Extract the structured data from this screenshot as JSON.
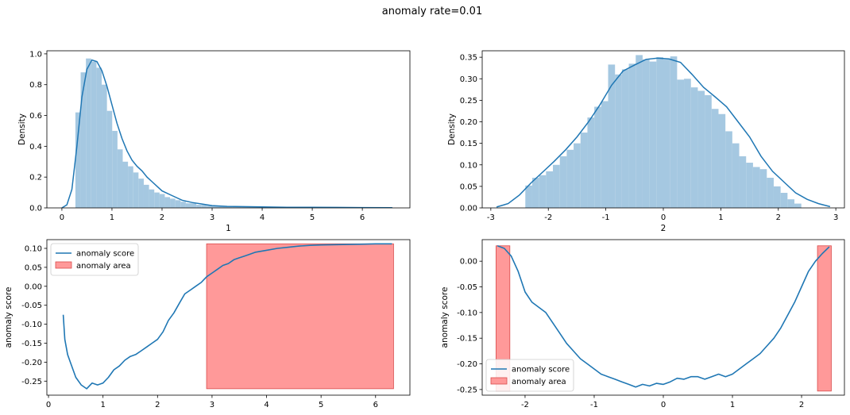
{
  "figure": {
    "suptitle": "anomaly rate=0.01"
  },
  "chart_data": [
    {
      "type": "bar",
      "subtype": "histogram+kde",
      "xlabel": "1",
      "ylabel": "Density",
      "xlim": [
        -0.3,
        6.95
      ],
      "ylim": [
        0,
        1.02
      ],
      "xticks": [
        0,
        1,
        2,
        3,
        4,
        5,
        6
      ],
      "yticks": [
        0.0,
        0.2,
        0.4,
        0.6,
        0.8,
        1.0
      ],
      "hist_color": "#a5c8e1",
      "line_color": "#1f77b4",
      "bins": {
        "edges": [
          0.27,
          0.375,
          0.48,
          0.585,
          0.69,
          0.795,
          0.9,
          1.005,
          1.11,
          1.215,
          1.32,
          1.425,
          1.53,
          1.635,
          1.74,
          1.845,
          1.95,
          2.055,
          2.16,
          2.265,
          2.37,
          2.475,
          2.58,
          2.685,
          2.79,
          2.895,
          3.0,
          3.2,
          3.4,
          3.6,
          3.8,
          4.0,
          4.5,
          5.0,
          5.5,
          6.0,
          6.6
        ],
        "heights": [
          0.62,
          0.88,
          0.97,
          0.95,
          0.91,
          0.8,
          0.63,
          0.5,
          0.38,
          0.3,
          0.27,
          0.23,
          0.19,
          0.15,
          0.12,
          0.1,
          0.09,
          0.07,
          0.06,
          0.05,
          0.04,
          0.03,
          0.03,
          0.02,
          0.02,
          0.015,
          0.012,
          0.01,
          0.008,
          0.007,
          0.006,
          0.005,
          0.004,
          0.003,
          0.002,
          0.002
        ]
      },
      "kde": {
        "x": [
          0.0,
          0.1,
          0.2,
          0.3,
          0.4,
          0.5,
          0.6,
          0.7,
          0.8,
          0.9,
          1.0,
          1.1,
          1.2,
          1.3,
          1.4,
          1.5,
          1.6,
          1.7,
          1.8,
          1.9,
          2.0,
          2.2,
          2.4,
          2.6,
          2.8,
          3.0,
          3.3,
          3.6,
          4.0,
          4.5,
          5.0,
          5.5,
          6.0,
          6.6
        ],
        "y": [
          0.0,
          0.02,
          0.12,
          0.4,
          0.72,
          0.9,
          0.96,
          0.95,
          0.89,
          0.79,
          0.67,
          0.55,
          0.45,
          0.37,
          0.31,
          0.27,
          0.24,
          0.2,
          0.17,
          0.14,
          0.11,
          0.08,
          0.05,
          0.035,
          0.025,
          0.015,
          0.01,
          0.008,
          0.006,
          0.004,
          0.004,
          0.003,
          0.002,
          0.001
        ]
      }
    },
    {
      "type": "bar",
      "subtype": "histogram+kde",
      "xlabel": "2",
      "ylabel": "Density",
      "xlim": [
        -3.15,
        3.15
      ],
      "ylim": [
        0,
        0.365
      ],
      "xticks": [
        -3,
        -2,
        -1,
        0,
        1,
        2,
        3
      ],
      "yticks": [
        0.0,
        0.05,
        0.1,
        0.15,
        0.2,
        0.25,
        0.3,
        0.35
      ],
      "hist_color": "#a5c8e1",
      "line_color": "#1f77b4",
      "bins": {
        "edges": [
          -2.4,
          -2.28,
          -2.16,
          -2.04,
          -1.92,
          -1.8,
          -1.68,
          -1.56,
          -1.44,
          -1.32,
          -1.2,
          -1.08,
          -0.96,
          -0.84,
          -0.72,
          -0.6,
          -0.48,
          -0.36,
          -0.24,
          -0.12,
          0.0,
          0.12,
          0.24,
          0.36,
          0.48,
          0.6,
          0.72,
          0.84,
          0.96,
          1.08,
          1.2,
          1.32,
          1.44,
          1.56,
          1.68,
          1.8,
          1.92,
          2.04,
          2.16,
          2.28,
          2.4
        ],
        "heights": [
          0.052,
          0.07,
          0.076,
          0.085,
          0.1,
          0.12,
          0.135,
          0.15,
          0.175,
          0.21,
          0.235,
          0.248,
          0.333,
          0.31,
          0.322,
          0.335,
          0.355,
          0.345,
          0.34,
          0.35,
          0.345,
          0.352,
          0.298,
          0.3,
          0.28,
          0.272,
          0.262,
          0.23,
          0.218,
          0.178,
          0.15,
          0.12,
          0.105,
          0.095,
          0.09,
          0.07,
          0.05,
          0.035,
          0.02,
          0.01
        ]
      },
      "kde": {
        "x": [
          -2.9,
          -2.7,
          -2.5,
          -2.3,
          -2.1,
          -1.9,
          -1.7,
          -1.5,
          -1.3,
          -1.1,
          -0.9,
          -0.7,
          -0.5,
          -0.3,
          -0.1,
          0.1,
          0.3,
          0.5,
          0.7,
          0.9,
          1.1,
          1.3,
          1.5,
          1.7,
          1.9,
          2.1,
          2.3,
          2.5,
          2.7,
          2.9
        ],
        "y": [
          0.002,
          0.01,
          0.03,
          0.058,
          0.083,
          0.108,
          0.135,
          0.165,
          0.2,
          0.24,
          0.285,
          0.318,
          0.332,
          0.345,
          0.348,
          0.346,
          0.338,
          0.31,
          0.28,
          0.258,
          0.235,
          0.2,
          0.165,
          0.12,
          0.085,
          0.06,
          0.035,
          0.02,
          0.01,
          0.003
        ]
      }
    },
    {
      "type": "line",
      "xlabel": "",
      "ylabel": "anomaly score",
      "xlim": [
        -0.03,
        6.63
      ],
      "ylim": [
        -0.287,
        0.123
      ],
      "xticks": [
        0,
        1,
        2,
        3,
        4,
        5,
        6
      ],
      "yticks": [
        -0.25,
        -0.2,
        -0.15,
        -0.1,
        -0.05,
        0.0,
        0.05,
        0.1
      ],
      "legend": {
        "placement": "upper left",
        "entries": [
          "anomaly score",
          "anomaly area"
        ]
      },
      "series": [
        {
          "name": "anomaly score",
          "color": "#1f77b4",
          "x": [
            0.27,
            0.3,
            0.35,
            0.4,
            0.5,
            0.6,
            0.7,
            0.8,
            0.9,
            1.0,
            1.1,
            1.2,
            1.3,
            1.4,
            1.5,
            1.6,
            1.7,
            1.8,
            1.9,
            2.0,
            2.1,
            2.2,
            2.3,
            2.4,
            2.5,
            2.6,
            2.7,
            2.8,
            2.9,
            3.0,
            3.1,
            3.2,
            3.3,
            3.4,
            3.5,
            3.6,
            3.7,
            3.8,
            4.0,
            4.2,
            4.4,
            4.6,
            4.8,
            5.0,
            5.4,
            5.8,
            6.0,
            6.3
          ],
          "y": [
            -0.075,
            -0.14,
            -0.18,
            -0.2,
            -0.24,
            -0.26,
            -0.27,
            -0.255,
            -0.26,
            -0.255,
            -0.24,
            -0.22,
            -0.21,
            -0.195,
            -0.185,
            -0.18,
            -0.17,
            -0.16,
            -0.15,
            -0.14,
            -0.12,
            -0.09,
            -0.07,
            -0.045,
            -0.02,
            -0.01,
            0.0,
            0.01,
            0.025,
            0.035,
            0.045,
            0.055,
            0.06,
            0.07,
            0.075,
            0.08,
            0.085,
            0.09,
            0.095,
            0.1,
            0.103,
            0.106,
            0.108,
            0.109,
            0.11,
            0.111,
            0.112,
            0.112
          ]
        }
      ],
      "anomaly_areas": [
        {
          "x_range": [
            2.9,
            6.33
          ],
          "y_range": [
            -0.27,
            0.112
          ],
          "color": "#ff9999"
        }
      ]
    },
    {
      "type": "line",
      "xlabel": "",
      "ylabel": "anomaly score",
      "xlim": [
        -2.62,
        2.62
      ],
      "ylim": [
        -0.261,
        0.042
      ],
      "xticks": [
        -2,
        -1,
        0,
        1,
        2
      ],
      "yticks": [
        -0.25,
        -0.2,
        -0.15,
        -0.1,
        -0.05,
        0.0
      ],
      "legend": {
        "placement": "lower left",
        "entries": [
          "anomaly score",
          "anomaly area"
        ]
      },
      "series": [
        {
          "name": "anomaly score",
          "color": "#1f77b4",
          "x": [
            -2.4,
            -2.3,
            -2.2,
            -2.1,
            -2.0,
            -1.9,
            -1.8,
            -1.7,
            -1.6,
            -1.5,
            -1.4,
            -1.3,
            -1.2,
            -1.1,
            -1.0,
            -0.9,
            -0.8,
            -0.7,
            -0.6,
            -0.5,
            -0.4,
            -0.3,
            -0.2,
            -0.1,
            0.0,
            0.1,
            0.2,
            0.3,
            0.4,
            0.5,
            0.6,
            0.7,
            0.8,
            0.9,
            1.0,
            1.1,
            1.2,
            1.3,
            1.4,
            1.5,
            1.6,
            1.7,
            1.8,
            1.9,
            2.0,
            2.1,
            2.2,
            2.3,
            2.4
          ],
          "y": [
            0.03,
            0.025,
            0.01,
            -0.02,
            -0.06,
            -0.08,
            -0.09,
            -0.1,
            -0.12,
            -0.14,
            -0.16,
            -0.175,
            -0.19,
            -0.2,
            -0.21,
            -0.22,
            -0.225,
            -0.23,
            -0.235,
            -0.24,
            -0.245,
            -0.24,
            -0.243,
            -0.238,
            -0.24,
            -0.235,
            -0.228,
            -0.23,
            -0.225,
            -0.225,
            -0.23,
            -0.225,
            -0.22,
            -0.225,
            -0.22,
            -0.21,
            -0.2,
            -0.19,
            -0.18,
            -0.165,
            -0.15,
            -0.13,
            -0.105,
            -0.08,
            -0.05,
            -0.02,
            0.0,
            0.015,
            0.028
          ]
        }
      ],
      "anomaly_areas": [
        {
          "x_range": [
            -2.42,
            -2.22
          ],
          "y_range": [
            -0.253,
            0.03
          ],
          "color": "#ff9999"
        },
        {
          "x_range": [
            2.23,
            2.43
          ],
          "y_range": [
            -0.253,
            0.03
          ],
          "color": "#ff9999"
        }
      ]
    }
  ]
}
